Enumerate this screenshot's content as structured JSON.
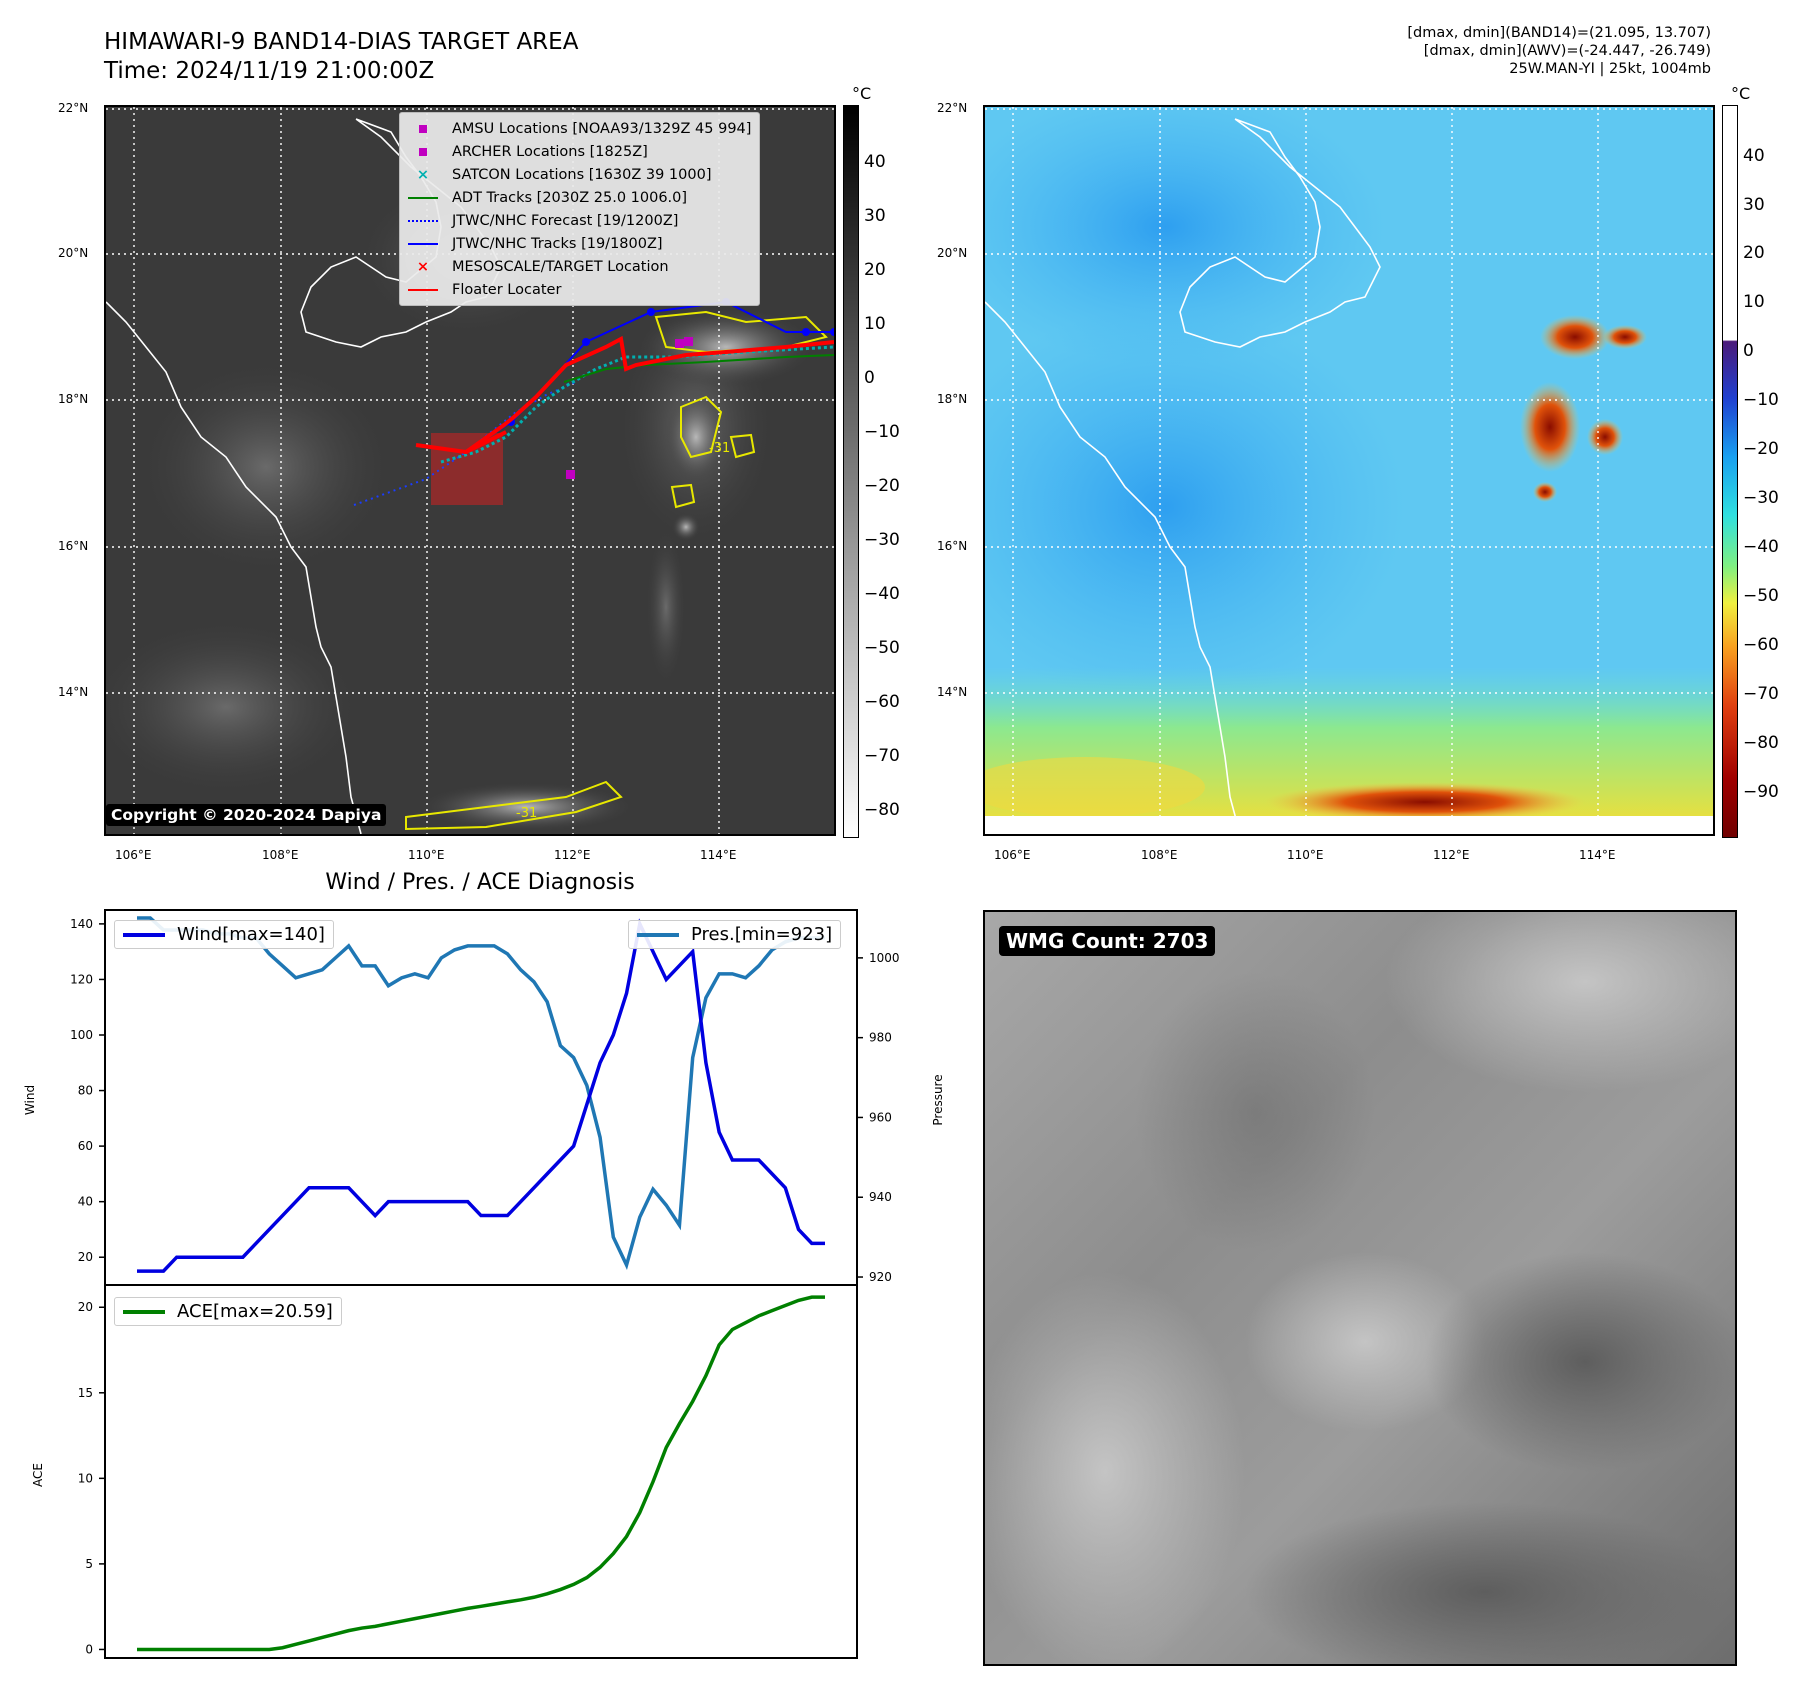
{
  "header": {
    "title_line1": "HIMAWARI-9 BAND14-DIAS TARGET AREA",
    "title_line2": "Time: 2024/11/19 21:00:00Z",
    "right_line1": "[dmax, dmin](BAND14)=(21.095, 13.707)",
    "right_line2": "[dmax, dmin](AWV)=(-24.447, -26.749)",
    "right_line3": "25W.MAN-YI | 25kt, 1004mb"
  },
  "map_axes": {
    "lat_labels": [
      "22°N",
      "20°N",
      "18°N",
      "16°N",
      "14°N"
    ],
    "lon_labels": [
      "106°E",
      "108°E",
      "110°E",
      "112°E",
      "114°E"
    ]
  },
  "ir_map": {
    "legend": [
      {
        "label": "AMSU Locations [NOAA93/1329Z 45 994]",
        "marker": "square",
        "color": "#c000c0"
      },
      {
        "label": "ARCHER Locations [1825Z]",
        "marker": "square",
        "color": "#c000c0"
      },
      {
        "label": "SATCON Locations [1630Z 39 1000]",
        "marker": "x",
        "color": "#00b0b0"
      },
      {
        "label": "ADT Tracks [2030Z 25.0 1006.0]",
        "marker": "line",
        "color": "#008000"
      },
      {
        "label": "JTWC/NHC Forecast [19/1200Z]",
        "marker": "dotted",
        "color": "#0000ff"
      },
      {
        "label": "JTWC/NHC Tracks [19/1800Z]",
        "marker": "line-dot",
        "color": "#0000ff"
      },
      {
        "label": "MESOSCALE/TARGET Location",
        "marker": "x",
        "color": "#ff0000"
      },
      {
        "label": "Floater Locater",
        "marker": "line",
        "color": "#ff0000"
      }
    ],
    "copyright": "Copyright © 2020-2024 Dapiya",
    "contour_label": "-31",
    "colorbar_unit": "°C",
    "colorbar_ticks": [
      "40",
      "30",
      "20",
      "10",
      "0",
      "−10",
      "−20",
      "−30",
      "−40",
      "−50",
      "−60",
      "−70",
      "−80"
    ]
  },
  "awv_map": {
    "colorbar_unit": "°C",
    "colorbar_ticks": [
      "40",
      "30",
      "20",
      "10",
      "0",
      "−10",
      "−20",
      "−30",
      "−40",
      "−50",
      "−60",
      "−70",
      "−80",
      "−90"
    ]
  },
  "diag": {
    "title": "Wind / Pres. / ACE Diagnosis",
    "wind_legend": "Wind[max=140]",
    "pres_legend": "Pres.[min=923]",
    "ace_legend": "ACE[max=20.59]",
    "wind_axis_label": "Wind",
    "pres_axis_label": "Pressure",
    "ace_axis_label": "ACE",
    "colors": {
      "wind": "#0000e0",
      "pres": "#1f77b4",
      "ace": "#008000"
    }
  },
  "wmg": {
    "badge": "WMG Count: 2703"
  },
  "chart_data": [
    {
      "type": "line",
      "name": "wind-pressure",
      "x": [
        0,
        1,
        2,
        3,
        4,
        5,
        6,
        7,
        8,
        9,
        10,
        11,
        12,
        13,
        14,
        15,
        16,
        17,
        18,
        19,
        20,
        21,
        22,
        23,
        24,
        25,
        26,
        27,
        28,
        29,
        30,
        31,
        32,
        33,
        34,
        35,
        36,
        37,
        38,
        39,
        40,
        41,
        42,
        43,
        44,
        45,
        46,
        47,
        48,
        49,
        50,
        51,
        52
      ],
      "series": [
        {
          "name": "Wind[max=140]",
          "axis": "left",
          "values": [
            15,
            15,
            15,
            20,
            20,
            20,
            20,
            20,
            20,
            25,
            30,
            35,
            40,
            45,
            45,
            45,
            45,
            40,
            35,
            40,
            40,
            40,
            40,
            40,
            40,
            40,
            35,
            35,
            35,
            40,
            45,
            50,
            55,
            60,
            75,
            90,
            100,
            115,
            140,
            130,
            120,
            125,
            130,
            90,
            65,
            55,
            55,
            55,
            50,
            45,
            30,
            25,
            25
          ]
        },
        {
          "name": "Pres.[min=923]",
          "axis": "right",
          "values": [
            1010,
            1010,
            1007,
            1007,
            1007,
            1007,
            1006,
            1006,
            1005,
            1005,
            1001,
            998,
            995,
            996,
            997,
            1000,
            1003,
            998,
            998,
            993,
            995,
            996,
            995,
            1000,
            1002,
            1003,
            1003,
            1003,
            1001,
            997,
            994,
            989,
            978,
            975,
            968,
            955,
            930,
            923,
            935,
            942,
            938,
            933,
            975,
            990,
            996,
            996,
            995,
            998,
            1002,
            1004,
            1005,
            1005,
            1005
          ]
        }
      ],
      "ylim_left": [
        10,
        145
      ],
      "yticks_left": [
        20,
        40,
        60,
        80,
        100,
        120,
        140
      ],
      "ylim_right": [
        918,
        1012
      ],
      "yticks_right": [
        920,
        940,
        960,
        980,
        1000
      ]
    },
    {
      "type": "line",
      "name": "ace",
      "x": [
        0,
        1,
        2,
        3,
        4,
        5,
        6,
        7,
        8,
        9,
        10,
        11,
        12,
        13,
        14,
        15,
        16,
        17,
        18,
        19,
        20,
        21,
        22,
        23,
        24,
        25,
        26,
        27,
        28,
        29,
        30,
        31,
        32,
        33,
        34,
        35,
        36,
        37,
        38,
        39,
        40,
        41,
        42,
        43,
        44,
        45,
        46,
        47,
        48,
        49,
        50,
        51,
        52
      ],
      "series": [
        {
          "name": "ACE[max=20.59]",
          "values": [
            0,
            0,
            0,
            0,
            0,
            0,
            0,
            0,
            0,
            0,
            0,
            0.1,
            0.3,
            0.5,
            0.7,
            0.9,
            1.1,
            1.25,
            1.35,
            1.5,
            1.65,
            1.8,
            1.95,
            2.1,
            2.25,
            2.4,
            2.52,
            2.65,
            2.78,
            2.9,
            3.05,
            3.25,
            3.5,
            3.8,
            4.2,
            4.8,
            5.6,
            6.6,
            8.0,
            9.8,
            11.8,
            13.2,
            14.5,
            16.0,
            17.8,
            18.7,
            19.1,
            19.5,
            19.8,
            20.1,
            20.4,
            20.59,
            20.59
          ]
        }
      ],
      "ylim": [
        -0.5,
        21.3
      ],
      "yticks": [
        0,
        5,
        10,
        15,
        20
      ]
    }
  ]
}
